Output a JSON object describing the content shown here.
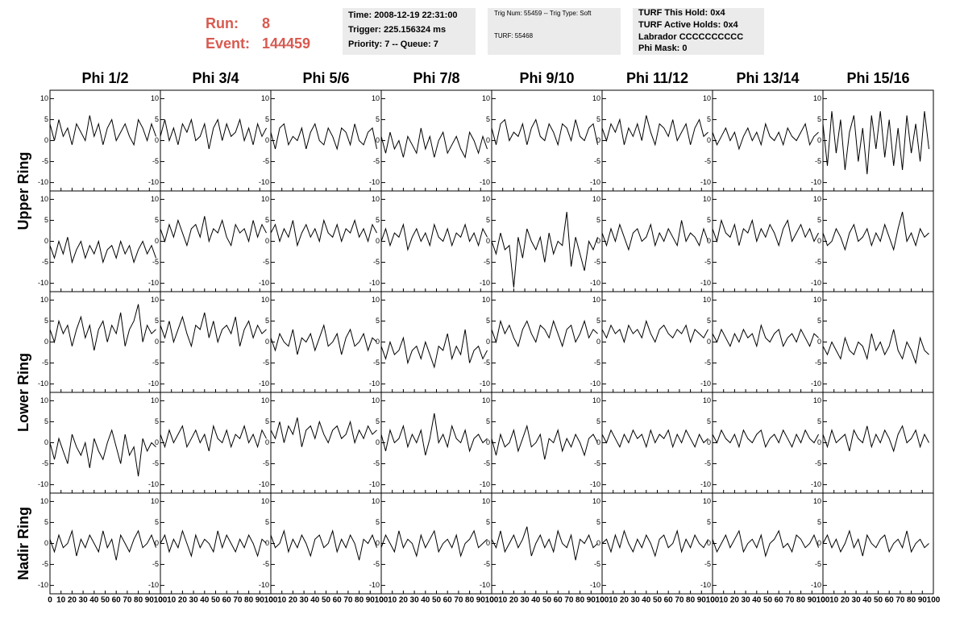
{
  "header": {
    "run_label": "Run:",
    "run": "8",
    "event_label": "Event:",
    "event": "144459",
    "box1": [
      "Time: 2008-12-19 22:31:00",
      "Trigger: 225.156324 ms",
      "Priority: 7 -- Queue: 7"
    ],
    "box2": [
      "Trig Num: 55459 -- Trig Type: Soft",
      "TURF: 55468"
    ],
    "box3": [
      "TURF This Hold: 0x4",
      "TURF Active Holds: 0x4",
      "Labrador CCCCCCCCCC",
      "Phi Mask: 0"
    ]
  },
  "chart_data": {
    "type": "line",
    "columns": [
      "Phi 1/2",
      "Phi 3/4",
      "Phi 5/6",
      "Phi 7/8",
      "Phi 9/10",
      "Phi 11/12",
      "Phi 13/14",
      "Phi 15/16"
    ],
    "row_labels": [
      "Upper Ring",
      "Lower Ring",
      "Nadir Ring"
    ],
    "x": [
      0,
      4,
      8,
      12,
      16,
      20,
      24,
      28,
      32,
      36,
      40,
      44,
      48,
      52,
      56,
      60,
      64,
      68,
      72,
      76,
      80,
      84,
      88,
      92,
      96
    ],
    "xlim": [
      0,
      100
    ],
    "xticks": [
      0,
      10,
      20,
      30,
      40,
      50,
      60,
      70,
      80,
      90,
      100
    ],
    "ylim": [
      -12,
      12
    ],
    "yticks": [
      -10,
      -5,
      0,
      5,
      10
    ],
    "color": "#000000",
    "panels": [
      [
        {
          "values": [
            4,
            0,
            5,
            1,
            3,
            -1,
            4,
            2,
            0,
            6,
            1,
            4,
            -1,
            3,
            5,
            0,
            2,
            4,
            1,
            -1,
            5,
            3,
            0,
            4,
            1
          ]
        },
        {
          "values": [
            1,
            5,
            0,
            3,
            -1,
            4,
            2,
            5,
            0,
            1,
            4,
            -2,
            3,
            5,
            0,
            4,
            1,
            2,
            5,
            0,
            3,
            -1,
            4,
            1,
            3
          ]
        },
        {
          "values": [
            2,
            -2,
            3,
            4,
            -1,
            1,
            0,
            3,
            -2,
            2,
            4,
            0,
            -1,
            3,
            1,
            -2,
            3,
            2,
            -1,
            4,
            0,
            -1,
            2,
            3,
            -2
          ]
        },
        {
          "values": [
            1,
            -3,
            2,
            -2,
            0,
            -4,
            1,
            -1,
            -3,
            3,
            -2,
            1,
            -4,
            0,
            2,
            -3,
            -1,
            1,
            -2,
            -4,
            2,
            0,
            -3,
            1,
            -2
          ]
        },
        {
          "values": [
            3,
            -1,
            4,
            5,
            0,
            2,
            1,
            4,
            -1,
            3,
            5,
            1,
            0,
            4,
            2,
            -1,
            4,
            3,
            0,
            5,
            1,
            0,
            3,
            4,
            -1
          ]
        },
        {
          "values": [
            3,
            0,
            4,
            2,
            5,
            -1,
            3,
            1,
            4,
            0,
            6,
            2,
            -1,
            4,
            3,
            1,
            5,
            0,
            2,
            4,
            -1,
            3,
            5,
            1,
            2
          ]
        },
        {
          "values": [
            2,
            -1,
            1,
            3,
            0,
            2,
            -2,
            1,
            3,
            0,
            2,
            -1,
            4,
            1,
            0,
            2,
            -1,
            3,
            1,
            0,
            2,
            4,
            -1,
            1,
            2
          ]
        },
        {
          "values": [
            4,
            -6,
            7,
            -3,
            5,
            -7,
            2,
            6,
            -5,
            3,
            -8,
            6,
            -2,
            7,
            -4,
            5,
            -6,
            3,
            -7,
            6,
            -3,
            4,
            -5,
            7,
            -2
          ]
        }
      ],
      [
        {
          "values": [
            -1,
            -4,
            0,
            -3,
            1,
            -5,
            -2,
            0,
            -4,
            -1,
            -3,
            0,
            -5,
            -2,
            -1,
            -4,
            0,
            -3,
            -1,
            -5,
            -2,
            0,
            -3,
            -1,
            -4
          ]
        },
        {
          "values": [
            3,
            0,
            4,
            1,
            5,
            2,
            -1,
            3,
            4,
            1,
            6,
            0,
            3,
            2,
            5,
            1,
            -1,
            4,
            2,
            3,
            0,
            5,
            1,
            4,
            2
          ]
        },
        {
          "values": [
            2,
            4,
            0,
            3,
            1,
            5,
            -1,
            2,
            4,
            1,
            3,
            0,
            5,
            2,
            1,
            4,
            0,
            3,
            2,
            5,
            1,
            3,
            0,
            4,
            2
          ]
        },
        {
          "values": [
            0,
            3,
            -1,
            2,
            1,
            4,
            -2,
            1,
            3,
            0,
            2,
            -1,
            4,
            1,
            0,
            3,
            -1,
            2,
            1,
            4,
            0,
            2,
            -1,
            3,
            1
          ]
        },
        {
          "values": [
            0,
            -3,
            2,
            -2,
            -1,
            -11,
            1,
            -4,
            3,
            0,
            -2,
            1,
            -5,
            2,
            -3,
            0,
            -1,
            7,
            -6,
            1,
            -3,
            -7,
            0,
            -2,
            1
          ]
        },
        {
          "values": [
            2,
            -1,
            3,
            0,
            4,
            1,
            -2,
            2,
            3,
            0,
            1,
            4,
            -1,
            2,
            0,
            3,
            1,
            -1,
            5,
            0,
            2,
            1,
            -1,
            3,
            0
          ]
        },
        {
          "values": [
            3,
            0,
            5,
            2,
            1,
            4,
            -1,
            3,
            2,
            5,
            0,
            3,
            1,
            4,
            2,
            -1,
            3,
            5,
            0,
            2,
            4,
            1,
            3,
            0,
            2
          ]
        },
        {
          "values": [
            2,
            -1,
            0,
            3,
            1,
            -2,
            2,
            4,
            0,
            1,
            3,
            -1,
            2,
            0,
            4,
            1,
            -2,
            3,
            7,
            0,
            2,
            -1,
            3,
            1,
            2
          ]
        }
      ],
      [
        {
          "values": [
            3,
            0,
            5,
            2,
            4,
            -1,
            3,
            6,
            1,
            4,
            -2,
            3,
            5,
            0,
            4,
            2,
            7,
            -1,
            3,
            5,
            9,
            0,
            4,
            2,
            3
          ]
        },
        {
          "values": [
            4,
            1,
            5,
            0,
            3,
            6,
            2,
            -1,
            4,
            3,
            7,
            1,
            5,
            0,
            3,
            4,
            2,
            6,
            -1,
            3,
            5,
            1,
            4,
            2,
            3
          ]
        },
        {
          "values": [
            1,
            -2,
            2,
            0,
            -1,
            3,
            -3,
            1,
            0,
            2,
            -2,
            1,
            4,
            -1,
            0,
            2,
            -3,
            1,
            3,
            -1,
            0,
            2,
            -2,
            1,
            0
          ]
        },
        {
          "values": [
            -1,
            -4,
            0,
            -3,
            -2,
            1,
            -5,
            -2,
            -1,
            -4,
            0,
            -3,
            -6,
            -1,
            -2,
            2,
            -4,
            -1,
            -3,
            3,
            -5,
            -2,
            -1,
            -4,
            -2
          ]
        },
        {
          "values": [
            3,
            0,
            5,
            2,
            4,
            1,
            -1,
            3,
            5,
            2,
            0,
            4,
            3,
            1,
            5,
            2,
            -1,
            3,
            4,
            0,
            2,
            5,
            1,
            3,
            2
          ]
        },
        {
          "values": [
            3,
            1,
            4,
            2,
            3,
            0,
            4,
            2,
            3,
            1,
            5,
            2,
            0,
            3,
            4,
            2,
            1,
            3,
            2,
            4,
            0,
            3,
            2,
            1,
            3
          ]
        },
        {
          "values": [
            2,
            0,
            3,
            1,
            -1,
            2,
            0,
            3,
            1,
            2,
            -1,
            4,
            1,
            0,
            2,
            3,
            -1,
            1,
            2,
            0,
            3,
            1,
            -1,
            2,
            1
          ]
        },
        {
          "values": [
            -1,
            -3,
            0,
            -2,
            -4,
            1,
            -2,
            -3,
            0,
            -1,
            -4,
            2,
            -2,
            0,
            -3,
            -1,
            3,
            -2,
            -4,
            0,
            -2,
            -5,
            1,
            -2,
            -3
          ]
        }
      ],
      [
        {
          "values": [
            0,
            -4,
            1,
            -2,
            -5,
            2,
            -1,
            -3,
            0,
            -6,
            1,
            -2,
            -4,
            0,
            3,
            -1,
            -5,
            2,
            -3,
            -1,
            -8,
            1,
            -2,
            0,
            -1
          ]
        },
        {
          "values": [
            2,
            -1,
            3,
            0,
            2,
            4,
            -1,
            1,
            3,
            0,
            2,
            -2,
            4,
            1,
            0,
            3,
            -1,
            2,
            1,
            4,
            0,
            2,
            -1,
            3,
            1
          ]
        },
        {
          "values": [
            3,
            1,
            5,
            0,
            4,
            2,
            6,
            -1,
            3,
            4,
            1,
            5,
            2,
            0,
            3,
            4,
            1,
            2,
            5,
            0,
            3,
            1,
            4,
            2,
            3
          ]
        },
        {
          "values": [
            2,
            -2,
            3,
            0,
            1,
            4,
            -1,
            2,
            0,
            3,
            -3,
            1,
            7,
            0,
            2,
            -1,
            4,
            1,
            0,
            3,
            -2,
            1,
            2,
            0,
            1
          ]
        },
        {
          "values": [
            1,
            -3,
            2,
            -1,
            0,
            3,
            -2,
            1,
            4,
            -1,
            0,
            2,
            -4,
            1,
            0,
            3,
            -2,
            1,
            -1,
            2,
            0,
            -3,
            1,
            2,
            0
          ]
        },
        {
          "values": [
            2,
            0,
            3,
            1,
            -1,
            2,
            0,
            3,
            1,
            2,
            -1,
            3,
            0,
            2,
            1,
            3,
            -1,
            2,
            0,
            3,
            1,
            -1,
            2,
            0,
            1
          ]
        },
        {
          "values": [
            2,
            0,
            3,
            1,
            0,
            2,
            -1,
            3,
            1,
            0,
            2,
            3,
            -1,
            1,
            2,
            0,
            3,
            1,
            -1,
            2,
            0,
            3,
            1,
            0,
            2
          ]
        },
        {
          "values": [
            2,
            -1,
            3,
            0,
            1,
            2,
            -2,
            3,
            1,
            0,
            4,
            -1,
            2,
            0,
            3,
            1,
            -2,
            2,
            4,
            0,
            1,
            3,
            -1,
            2,
            0
          ]
        }
      ],
      [
        {
          "values": [
            1,
            -2,
            2,
            -1,
            0,
            3,
            -3,
            1,
            -1,
            2,
            0,
            -2,
            3,
            -1,
            1,
            -4,
            2,
            0,
            -2,
            1,
            3,
            -1,
            0,
            2,
            -1
          ]
        },
        {
          "values": [
            0,
            2,
            -2,
            1,
            -1,
            3,
            0,
            -3,
            2,
            -1,
            1,
            0,
            -2,
            3,
            -1,
            2,
            0,
            -2,
            1,
            -1,
            2,
            0,
            -3,
            1,
            0
          ]
        },
        {
          "values": [
            2,
            -1,
            0,
            3,
            -2,
            1,
            -1,
            2,
            0,
            -3,
            1,
            2,
            -1,
            0,
            3,
            -2,
            1,
            -1,
            2,
            0,
            -4,
            1,
            0,
            2,
            -1
          ]
        },
        {
          "values": [
            -1,
            2,
            0,
            -2,
            3,
            -1,
            1,
            0,
            -3,
            2,
            -1,
            1,
            3,
            -2,
            0,
            1,
            -1,
            2,
            -3,
            0,
            1,
            3,
            -1,
            0,
            1
          ]
        },
        {
          "values": [
            1,
            -1,
            3,
            -2,
            0,
            2,
            -1,
            1,
            4,
            -3,
            0,
            2,
            -1,
            1,
            -2,
            3,
            0,
            -1,
            2,
            -4,
            1,
            0,
            2,
            -1,
            0
          ]
        },
        {
          "values": [
            0,
            1,
            -2,
            2,
            -1,
            3,
            0,
            -2,
            1,
            -1,
            2,
            0,
            -3,
            1,
            2,
            -1,
            0,
            3,
            -2,
            1,
            -1,
            2,
            0,
            -1,
            1
          ]
        },
        {
          "values": [
            1,
            -2,
            0,
            2,
            -1,
            1,
            3,
            -2,
            0,
            1,
            -1,
            2,
            -3,
            0,
            1,
            3,
            -1,
            0,
            -2,
            2,
            1,
            -1,
            0,
            2,
            -1
          ]
        },
        {
          "values": [
            0,
            2,
            -1,
            1,
            -2,
            0,
            3,
            -1,
            1,
            -3,
            2,
            0,
            -1,
            1,
            2,
            -2,
            0,
            1,
            -1,
            3,
            -2,
            0,
            1,
            -1,
            0
          ]
        }
      ]
    ]
  }
}
